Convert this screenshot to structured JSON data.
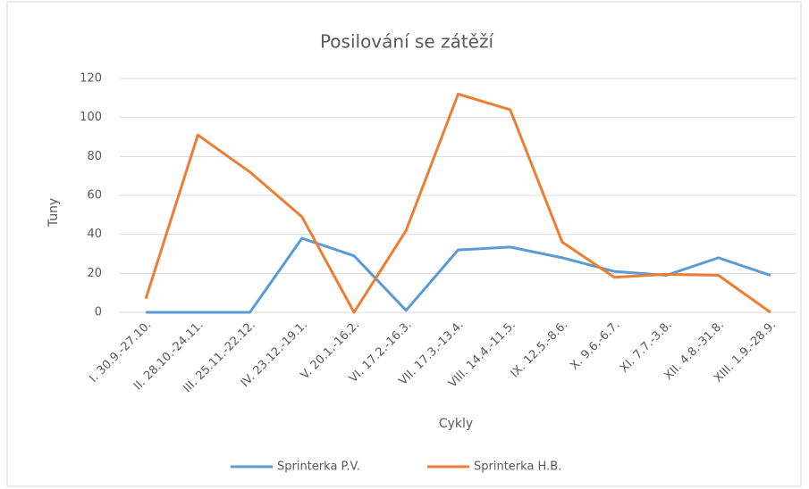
{
  "chart_data": {
    "type": "line",
    "title": "Posilování se zátěží",
    "x_label": "Cykly",
    "y_label": "Tuny",
    "categories": [
      "I. 30.9.-27.10.",
      "II. 28.10.-24.11.",
      "III. 25.11.-22.12.",
      "IV. 23.12.-19.1.",
      "V. 20.1.-16.2.",
      "VI. 17.2.-16.3.",
      "VII. 17.3.-13.4.",
      "VIII. 14.4.-11.5.",
      "IX. 12.5.-8.6.",
      "X. 9.6.-6.7.",
      "XI. 7.7.-3.8.",
      "XII. 4.8.-31.8.",
      "XIII. 1.9.-28.9."
    ],
    "series": [
      {
        "name": "Sprinterka P.V.",
        "color": "#5b9bd5",
        "values": [
          0,
          0,
          0,
          38,
          29,
          1,
          32,
          33.5,
          28,
          21,
          19,
          28,
          19
        ]
      },
      {
        "name": "Sprinterka H.B.",
        "color": "#ed7d31",
        "values": [
          7,
          91,
          72,
          49,
          0,
          42,
          112,
          104,
          36,
          18,
          19.5,
          19,
          0
        ]
      }
    ],
    "ylim": [
      0,
      120
    ],
    "yticks": [
      0,
      20,
      40,
      60,
      80,
      100,
      120
    ],
    "grid": true,
    "legend": "bottom"
  }
}
